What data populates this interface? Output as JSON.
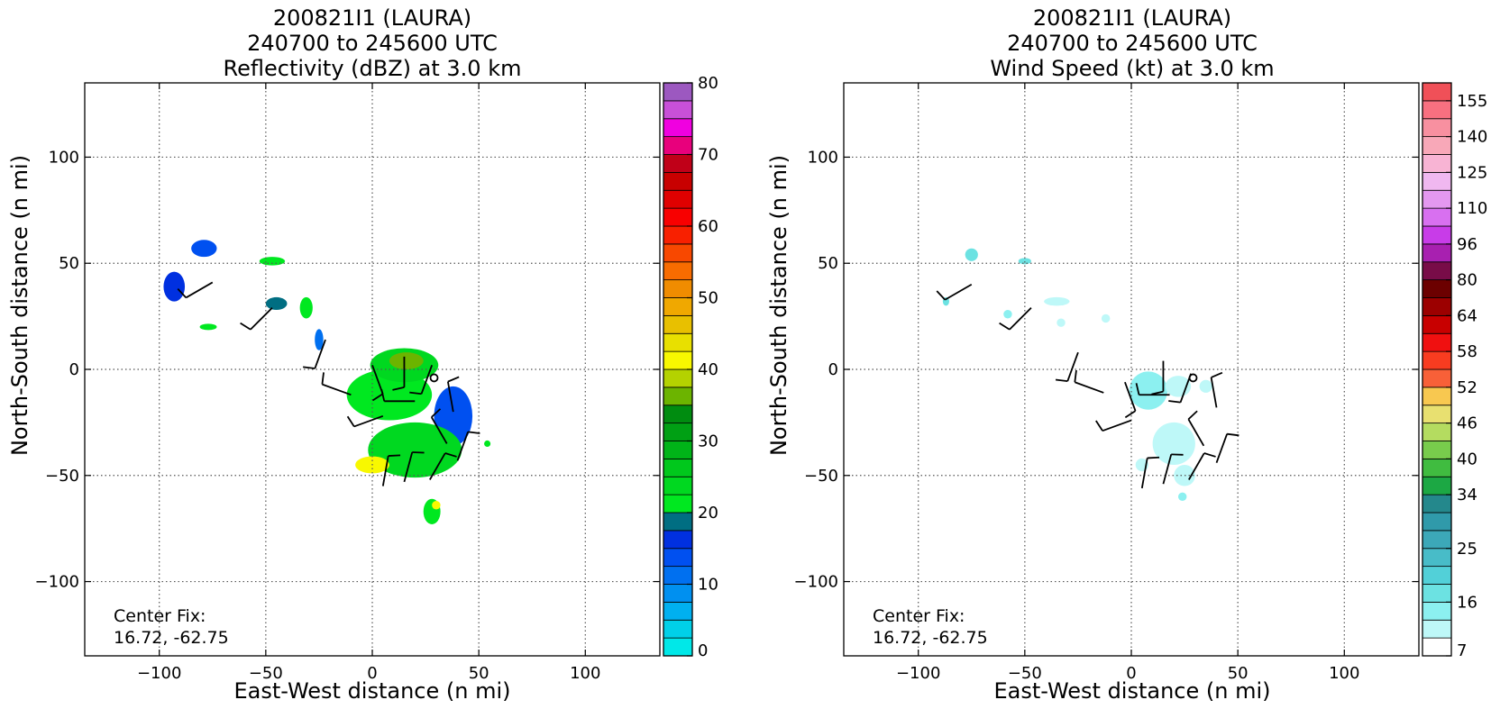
{
  "chart_data": [
    {
      "type": "heatmap",
      "title": [
        "200821I1 (LAURA)",
        "240700 to 245600 UTC",
        "Reflectivity (dBZ) at 3.0 km"
      ],
      "xlabel": "East-West distance (n mi)",
      "ylabel": "North-South distance (n mi)",
      "xlim": [
        -135,
        135
      ],
      "ylim": [
        -135,
        135
      ],
      "xticks": [
        -100,
        -50,
        0,
        50,
        100
      ],
      "yticks": [
        -100,
        -50,
        0,
        50,
        100
      ],
      "grid": true,
      "annotation": [
        "Center Fix:",
        "16.72, -62.75"
      ],
      "center_marker": [
        29,
        -4
      ],
      "colorbar": {
        "min": 0,
        "max": 80,
        "levels": [
          0,
          2.5,
          5,
          7.5,
          10,
          12.5,
          15,
          17.5,
          20,
          22.5,
          25,
          27.5,
          30,
          32.5,
          35,
          37.5,
          40,
          42.5,
          45,
          47.5,
          50,
          52.5,
          55,
          57.5,
          60,
          62.5,
          65,
          67.5,
          70,
          72.5,
          75,
          77.5,
          80
        ],
        "colors": [
          "#00e8e8",
          "#00d0e8",
          "#00b0f0",
          "#0090f0",
          "#0070f0",
          "#0050f0",
          "#0030e0",
          "#006e82",
          "#00e820",
          "#00d820",
          "#00c81c",
          "#00b418",
          "#00a014",
          "#008c10",
          "#6cb400",
          "#b4d200",
          "#f8f800",
          "#e8e000",
          "#e8c000",
          "#f0a800",
          "#f08c00",
          "#f86c00",
          "#f84800",
          "#f82000",
          "#f80000",
          "#e00000",
          "#c80000",
          "#c00018",
          "#e8007c",
          "#f000e0",
          "#c850d8",
          "#9c58c0",
          "#7040a0",
          "#483058",
          "#000000"
        ],
        "tick_values": [
          0,
          10,
          20,
          30,
          40,
          50,
          60,
          70,
          80
        ],
        "tick_labels": [
          "0",
          "10",
          "20",
          "30",
          "40",
          "50",
          "60",
          "70",
          "80"
        ]
      },
      "echo_regions": [
        {
          "x": -79,
          "y": 57,
          "rx": 6,
          "ry": 4,
          "value": 14
        },
        {
          "x": -93,
          "y": 39,
          "rx": 5,
          "ry": 7,
          "value": 16
        },
        {
          "x": -47,
          "y": 51,
          "rx": 6,
          "ry": 2,
          "value": 22
        },
        {
          "x": -45,
          "y": 31,
          "rx": 5,
          "ry": 3,
          "value": 18
        },
        {
          "x": -31,
          "y": 29,
          "rx": 3,
          "ry": 5,
          "value": 22
        },
        {
          "x": -25,
          "y": 14,
          "rx": 2,
          "ry": 5,
          "value": 12
        },
        {
          "x": -77,
          "y": 20,
          "rx": 4,
          "ry": 1.5,
          "value": 22
        },
        {
          "x": 8,
          "y": -12,
          "rx": 20,
          "ry": 12,
          "value": 22
        },
        {
          "x": 15,
          "y": 2,
          "rx": 16,
          "ry": 8,
          "value": 24
        },
        {
          "x": 38,
          "y": -22,
          "rx": 9,
          "ry": 14,
          "value": 14
        },
        {
          "x": 20,
          "y": -38,
          "rx": 22,
          "ry": 13,
          "value": 24
        },
        {
          "x": 0,
          "y": -45,
          "rx": 8,
          "ry": 4,
          "value": 40
        },
        {
          "x": 16,
          "y": 4,
          "rx": 8,
          "ry": 4,
          "value": 36
        },
        {
          "x": 28,
          "y": -67,
          "rx": 4,
          "ry": 6,
          "value": 22
        },
        {
          "x": 30,
          "y": -64,
          "rx": 2,
          "ry": 2,
          "value": 40
        },
        {
          "x": 54,
          "y": -35,
          "rx": 1.5,
          "ry": 1.5,
          "value": 20
        }
      ],
      "wind_barbs": [
        {
          "x": -75,
          "y": 41,
          "dir": 240,
          "spd": 10
        },
        {
          "x": -47,
          "y": 29,
          "dir": 225,
          "spd": 10
        },
        {
          "x": -22,
          "y": 14,
          "dir": 200,
          "spd": 10
        },
        {
          "x": 0,
          "y": 2,
          "dir": 160,
          "spd": 10
        },
        {
          "x": 15,
          "y": 6,
          "dir": 180,
          "spd": 10
        },
        {
          "x": 28,
          "y": 2,
          "dir": 200,
          "spd": 10
        },
        {
          "x": -10,
          "y": -12,
          "dir": 290,
          "spd": 10
        },
        {
          "x": 5,
          "y": -22,
          "dir": 250,
          "spd": 10
        },
        {
          "x": 20,
          "y": -15,
          "dir": 270,
          "spd": 10
        },
        {
          "x": 38,
          "y": -20,
          "dir": 350,
          "spd": 10
        },
        {
          "x": 35,
          "y": -35,
          "dir": 330,
          "spd": 10
        },
        {
          "x": 40,
          "y": -43,
          "dir": 20,
          "spd": 10
        },
        {
          "x": 5,
          "y": -55,
          "dir": 10,
          "spd": 10
        },
        {
          "x": 15,
          "y": -53,
          "dir": 15,
          "spd": 10
        },
        {
          "x": 27,
          "y": -52,
          "dir": 30,
          "spd": 10
        }
      ]
    },
    {
      "type": "heatmap",
      "title": [
        "200821I1 (LAURA)",
        "240700 to 245600 UTC",
        "Wind Speed (kt) at 3.0 km"
      ],
      "xlabel": "East-West distance (n mi)",
      "ylabel": "North-South distance (n mi)",
      "xlim": [
        -135,
        135
      ],
      "ylim": [
        -135,
        135
      ],
      "xticks": [
        -100,
        -50,
        0,
        50,
        100
      ],
      "yticks": [
        -100,
        -50,
        0,
        50,
        100
      ],
      "grid": true,
      "annotation": [
        "Center Fix:",
        "16.72, -62.75"
      ],
      "center_marker": [
        29,
        -4
      ],
      "colorbar": {
        "min": 7,
        "max": 160,
        "levels": [
          7,
          10,
          13,
          16,
          19,
          22,
          25,
          28,
          31,
          34,
          37,
          40,
          43,
          46,
          49,
          52,
          55,
          58,
          61,
          64,
          72,
          80,
          88,
          96,
          103,
          110,
          117,
          125,
          132,
          140,
          147,
          155,
          160
        ],
        "colors": [
          "#ffffff",
          "#bef8f8",
          "#8cf0f0",
          "#6ce2e2",
          "#52d0d8",
          "#48bcc8",
          "#3ca8b8",
          "#309aaa",
          "#24888c",
          "#1ca844",
          "#40bc40",
          "#78cc4c",
          "#b4dc60",
          "#e8e070",
          "#f8c850",
          "#f86038",
          "#f83c20",
          "#f01010",
          "#c80000",
          "#9c0000",
          "#6c0000",
          "#780c48",
          "#a820b0",
          "#c83ce8",
          "#d870f0",
          "#e498f0",
          "#f0b8f0",
          "#f8b4d4",
          "#f8a8b8",
          "#f890a0",
          "#f87080",
          "#f05058",
          "#d83850",
          "#b02440",
          "#901838"
        ],
        "tick_values": [
          7,
          16,
          25,
          34,
          40,
          46,
          52,
          58,
          64,
          80,
          96,
          110,
          125,
          140,
          155
        ],
        "tick_labels": [
          "7",
          "16",
          "25",
          "34",
          "40",
          "46",
          "52",
          "58",
          "64",
          "80",
          "96",
          "110",
          "125",
          "140",
          "155"
        ]
      },
      "echo_regions": [
        {
          "x": -75,
          "y": 54,
          "rx": 3,
          "ry": 3,
          "value": 17
        },
        {
          "x": -87,
          "y": 32,
          "rx": 1.5,
          "ry": 2,
          "value": 17
        },
        {
          "x": -50,
          "y": 51,
          "rx": 3,
          "ry": 1.5,
          "value": 16
        },
        {
          "x": -58,
          "y": 26,
          "rx": 2,
          "ry": 2,
          "value": 13
        },
        {
          "x": -35,
          "y": 32,
          "rx": 6,
          "ry": 2,
          "value": 11
        },
        {
          "x": -33,
          "y": 22,
          "rx": 2,
          "ry": 2,
          "value": 11
        },
        {
          "x": -12,
          "y": 24,
          "rx": 2,
          "ry": 2,
          "value": 12
        },
        {
          "x": 8,
          "y": -10,
          "rx": 9,
          "ry": 9,
          "value": 14
        },
        {
          "x": 22,
          "y": -8,
          "rx": 6,
          "ry": 5,
          "value": 12
        },
        {
          "x": 35,
          "y": -8,
          "rx": 3,
          "ry": 3,
          "value": 12
        },
        {
          "x": 20,
          "y": -35,
          "rx": 10,
          "ry": 10,
          "value": 12
        },
        {
          "x": 25,
          "y": -50,
          "rx": 5,
          "ry": 5,
          "value": 12
        },
        {
          "x": 24,
          "y": -60,
          "rx": 2,
          "ry": 2,
          "value": 13
        },
        {
          "x": 5,
          "y": -45,
          "rx": 3,
          "ry": 3,
          "value": 12
        }
      ],
      "wind_barbs": [
        {
          "x": -75,
          "y": 40,
          "dir": 240,
          "spd": 10
        },
        {
          "x": -47,
          "y": 29,
          "dir": 225,
          "spd": 10
        },
        {
          "x": -25,
          "y": 8,
          "dir": 200,
          "spd": 10
        },
        {
          "x": -3,
          "y": -6,
          "dir": 160,
          "spd": 10
        },
        {
          "x": 15,
          "y": 4,
          "dir": 180,
          "spd": 10
        },
        {
          "x": 28,
          "y": -2,
          "dir": 200,
          "spd": 10
        },
        {
          "x": -13,
          "y": -11,
          "dir": 290,
          "spd": 10
        },
        {
          "x": 0,
          "y": -24,
          "dir": 250,
          "spd": 10
        },
        {
          "x": 18,
          "y": -12,
          "dir": 270,
          "spd": 10
        },
        {
          "x": 40,
          "y": -18,
          "dir": 350,
          "spd": 10
        },
        {
          "x": 34,
          "y": -36,
          "dir": 330,
          "spd": 10
        },
        {
          "x": 40,
          "y": -44,
          "dir": 20,
          "spd": 10
        },
        {
          "x": 5,
          "y": -56,
          "dir": 10,
          "spd": 10
        },
        {
          "x": 15,
          "y": -54,
          "dir": 15,
          "spd": 10
        },
        {
          "x": 27,
          "y": -52,
          "dir": 30,
          "spd": 10
        }
      ]
    }
  ]
}
